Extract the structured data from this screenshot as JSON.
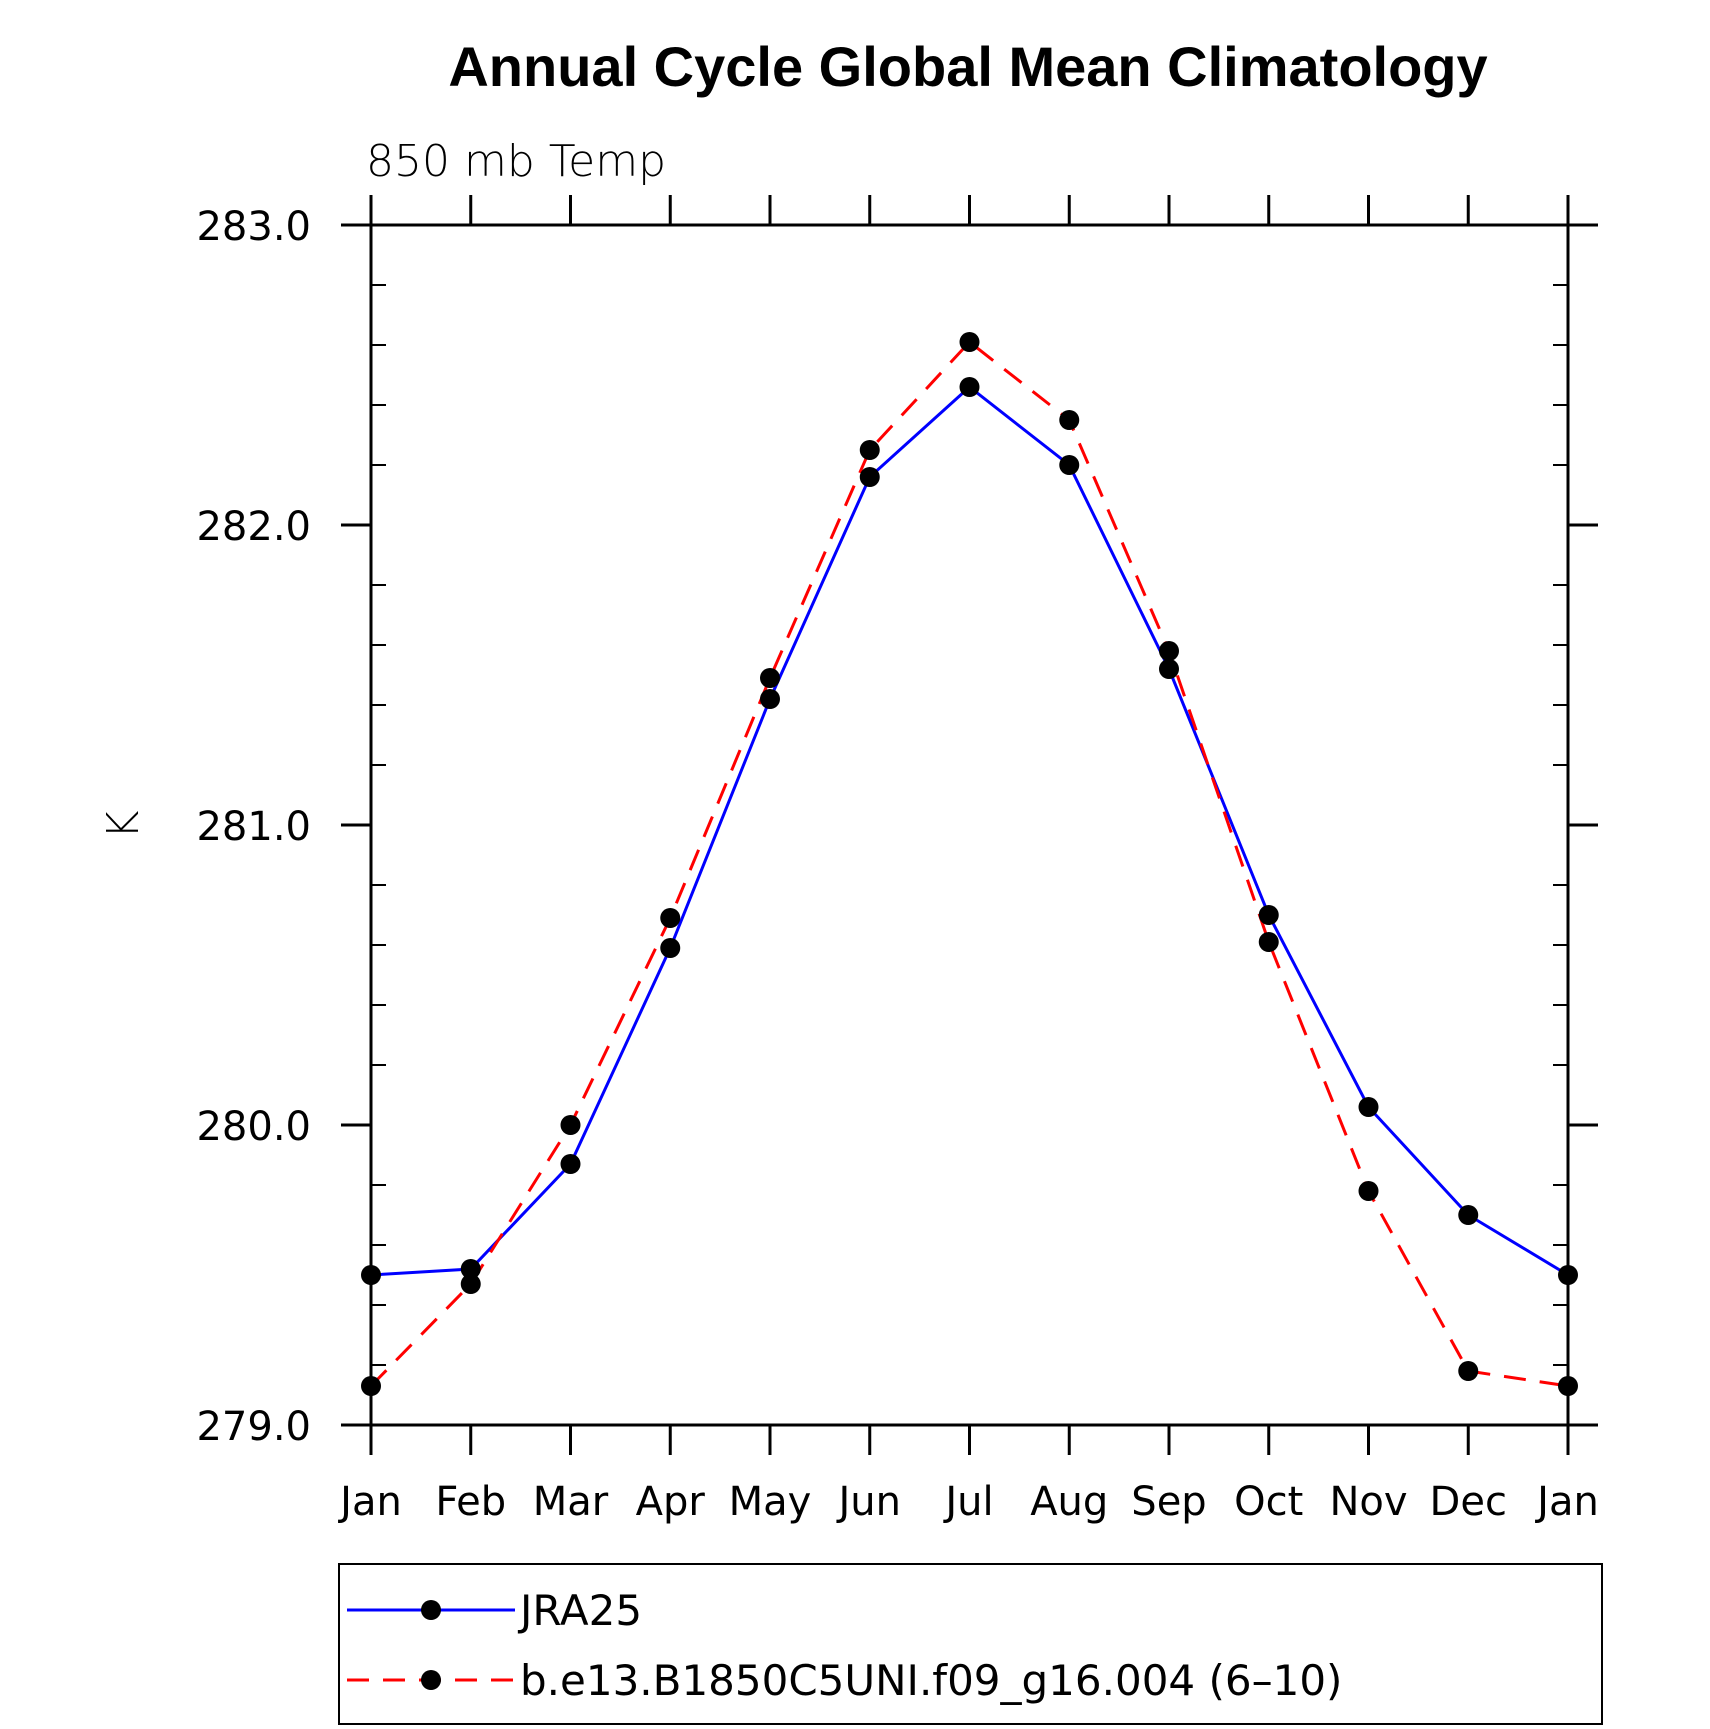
{
  "chart_data": {
    "type": "line",
    "title": "Annual Cycle Global Mean Climatology",
    "subtitle": "850 mb Temp",
    "xlabel": "",
    "ylabel": "K",
    "categories": [
      "Jan",
      "Feb",
      "Mar",
      "Apr",
      "May",
      "Jun",
      "Jul",
      "Aug",
      "Sep",
      "Oct",
      "Nov",
      "Dec",
      "Jan"
    ],
    "ylim": [
      279.0,
      283.0
    ],
    "yticks": [
      "279.0",
      "280.0",
      "281.0",
      "282.0",
      "283.0"
    ],
    "y_minor_step": 0.2,
    "series": [
      {
        "name": "JRA25",
        "color": "#0000ff",
        "dash": "solid",
        "values": [
          279.5,
          279.52,
          279.87,
          280.59,
          281.42,
          282.16,
          282.46,
          282.2,
          281.52,
          280.7,
          280.06,
          279.7,
          279.5
        ]
      },
      {
        "name": "b.e13.B1850C5UNI.f09_g16.004 (6–10)",
        "color": "#ff0000",
        "dash": "dashed",
        "values": [
          279.13,
          279.47,
          280.0,
          280.69,
          281.49,
          282.25,
          282.61,
          282.35,
          281.58,
          280.61,
          279.78,
          279.18,
          279.13
        ]
      }
    ],
    "legend_position": "bottom"
  }
}
